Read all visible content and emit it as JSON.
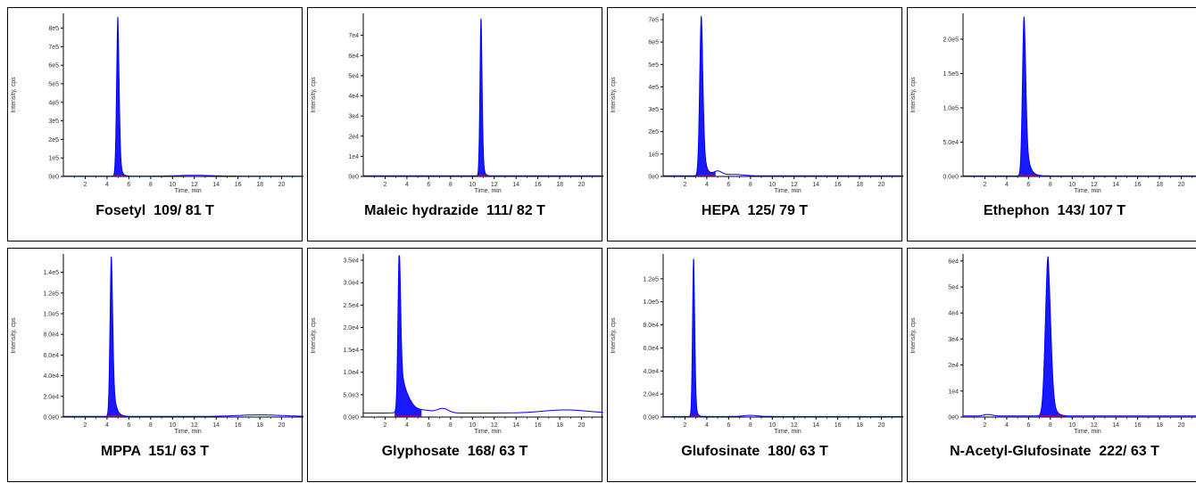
{
  "chart_data": [
    {
      "type": "line",
      "caption": "Fosetyl  109/ 81 T",
      "ylabel": "Intensity, cps",
      "xlabel": "Time, min",
      "xticks": [
        2,
        4,
        6,
        8,
        10,
        12,
        14,
        16,
        18,
        20
      ],
      "xlim": [
        0,
        22
      ],
      "ylim": [
        0,
        870000
      ],
      "yticks": [
        {
          "v": 0,
          "t": "0e0"
        },
        {
          "v": 100000,
          "t": "1e5"
        },
        {
          "v": 200000,
          "t": "2e5"
        },
        {
          "v": 300000,
          "t": "3e5"
        },
        {
          "v": 400000,
          "t": "4e5"
        },
        {
          "v": 500000,
          "t": "5e5"
        },
        {
          "v": 600000,
          "t": "6e5"
        },
        {
          "v": 700000,
          "t": "7e5"
        },
        {
          "v": 800000,
          "t": "8e5"
        }
      ],
      "peak": {
        "rt": 5.0,
        "height": 860000,
        "width": 0.12,
        "tail": 0.15
      },
      "baseline": 2000,
      "bumps": [
        {
          "x": 12,
          "h": 4000,
          "w": 1.5
        }
      ]
    },
    {
      "type": "line",
      "caption": "Maleic hydrazide  111/ 82 T",
      "ylabel": "Intensity, cps",
      "xlabel": "Time, min",
      "xticks": [
        2,
        4,
        6,
        8,
        10,
        12,
        14,
        16,
        18,
        20
      ],
      "xlim": [
        0,
        22
      ],
      "ylim": [
        0,
        80000
      ],
      "yticks": [
        {
          "v": 0,
          "t": "0e0"
        },
        {
          "v": 10000,
          "t": "1e4"
        },
        {
          "v": 20000,
          "t": "2e4"
        },
        {
          "v": 30000,
          "t": "3e4"
        },
        {
          "v": 40000,
          "t": "4e4"
        },
        {
          "v": 50000,
          "t": "5e4"
        },
        {
          "v": 60000,
          "t": "6e4"
        },
        {
          "v": 70000,
          "t": "7e4"
        }
      ],
      "peak": {
        "rt": 10.8,
        "height": 79000,
        "width": 0.1,
        "tail": 0.12
      },
      "baseline": 300,
      "bumps": []
    },
    {
      "type": "line",
      "caption": "HEPA  125/ 79 T",
      "ylabel": "Intensity, cps",
      "xlabel": "Time, min",
      "xticks": [
        2,
        4,
        6,
        8,
        10,
        12,
        14,
        16,
        18,
        20
      ],
      "xlim": [
        0,
        22
      ],
      "ylim": [
        0,
        720000
      ],
      "yticks": [
        {
          "v": 0,
          "t": "0e0"
        },
        {
          "v": 100000,
          "t": "1e5"
        },
        {
          "v": 200000,
          "t": "2e5"
        },
        {
          "v": 300000,
          "t": "3e5"
        },
        {
          "v": 400000,
          "t": "4e5"
        },
        {
          "v": 500000,
          "t": "5e5"
        },
        {
          "v": 600000,
          "t": "6e5"
        },
        {
          "v": 700000,
          "t": "7e5"
        }
      ],
      "peak": {
        "rt": 3.5,
        "height": 715000,
        "width": 0.15,
        "tail": 0.25
      },
      "baseline": 3000,
      "bumps": [
        {
          "x": 5.0,
          "h": 20000,
          "w": 0.4
        },
        {
          "x": 6.5,
          "h": 6000,
          "w": 0.8
        }
      ]
    },
    {
      "type": "line",
      "caption": "Ethephon  143/ 107 T",
      "ylabel": "Intensity, cps",
      "xlabel": "Time, min",
      "xticks": [
        2,
        4,
        6,
        8,
        10,
        12,
        14,
        16,
        18,
        20
      ],
      "xlim": [
        0,
        22
      ],
      "ylim": [
        0,
        235000
      ],
      "yticks": [
        {
          "v": 0,
          "t": "0.0e0"
        },
        {
          "v": 50000,
          "t": "5.0e4"
        },
        {
          "v": 100000,
          "t": "1.0e5"
        },
        {
          "v": 150000,
          "t": "1.5e5"
        },
        {
          "v": 200000,
          "t": "2.0e5"
        }
      ],
      "peak": {
        "rt": 5.6,
        "height": 233000,
        "width": 0.15,
        "tail": 0.3
      },
      "baseline": 800,
      "bumps": []
    },
    {
      "type": "line",
      "caption": "MPPA  151/ 63 T",
      "ylabel": "Intensity, cps",
      "xlabel": "Time, min",
      "xticks": [
        2,
        4,
        6,
        8,
        10,
        12,
        14,
        16,
        18,
        20
      ],
      "xlim": [
        0,
        22
      ],
      "ylim": [
        0,
        156000
      ],
      "yticks": [
        {
          "v": 0,
          "t": "0.0e0"
        },
        {
          "v": 20000,
          "t": "2.0e4"
        },
        {
          "v": 40000,
          "t": "4.0e4"
        },
        {
          "v": 60000,
          "t": "6.0e4"
        },
        {
          "v": 80000,
          "t": "8.0e4"
        },
        {
          "v": 100000,
          "t": "1.0e5"
        },
        {
          "v": 120000,
          "t": "1.2e5"
        },
        {
          "v": 140000,
          "t": "1.4e5"
        }
      ],
      "peak": {
        "rt": 4.4,
        "height": 155000,
        "width": 0.12,
        "tail": 0.25
      },
      "baseline": 600,
      "bumps": [
        {
          "x": 18,
          "h": 1500,
          "w": 2
        }
      ]
    },
    {
      "type": "line",
      "caption": "Glyphosate  168/ 63 T",
      "ylabel": "Intensity, cps",
      "xlabel": "Time, min",
      "xticks": [
        2,
        4,
        6,
        8,
        10,
        12,
        14,
        16,
        18,
        20
      ],
      "xlim": [
        0,
        22
      ],
      "ylim": [
        0,
        36000
      ],
      "yticks": [
        {
          "v": 0,
          "t": "0.0e0"
        },
        {
          "v": 5000,
          "t": "5.0e3"
        },
        {
          "v": 10000,
          "t": "1.0e4"
        },
        {
          "v": 15000,
          "t": "1.5e4"
        },
        {
          "v": 20000,
          "t": "2.0e4"
        },
        {
          "v": 25000,
          "t": "2.5e4"
        },
        {
          "v": 30000,
          "t": "3.0e4"
        },
        {
          "v": 35000,
          "t": "3.5e4"
        }
      ],
      "peak": {
        "rt": 3.3,
        "height": 35800,
        "width": 0.12,
        "tail": 0.45
      },
      "baseline": 900,
      "bumps": [
        {
          "x": 4.0,
          "h": 1500,
          "w": 0.5
        },
        {
          "x": 5.5,
          "h": 600,
          "w": 0.8
        },
        {
          "x": 7.3,
          "h": 1000,
          "w": 0.5
        },
        {
          "x": 18.5,
          "h": 700,
          "w": 2.0
        }
      ]
    },
    {
      "type": "line",
      "caption": "Glufosinate  180/ 63 T",
      "ylabel": "Intensity, cps",
      "xlabel": "Time, min",
      "xticks": [
        2,
        4,
        6,
        8,
        10,
        12,
        14,
        16,
        18,
        20
      ],
      "xlim": [
        0,
        22
      ],
      "ylim": [
        0,
        140000
      ],
      "yticks": [
        {
          "v": 0,
          "t": "0.0e0"
        },
        {
          "v": 20000,
          "t": "2.0e4"
        },
        {
          "v": 40000,
          "t": "4.0e4"
        },
        {
          "v": 60000,
          "t": "6.0e4"
        },
        {
          "v": 80000,
          "t": "8.0e4"
        },
        {
          "v": 100000,
          "t": "1.0e5"
        },
        {
          "v": 120000,
          "t": "1.2e5"
        }
      ],
      "peak": {
        "rt": 2.8,
        "height": 139000,
        "width": 0.1,
        "tail": 0.12
      },
      "baseline": 500,
      "bumps": [
        {
          "x": 8,
          "h": 1000,
          "w": 0.6
        }
      ]
    },
    {
      "type": "line",
      "caption": "N-Acetyl-Glufosinate  222/ 63 T",
      "ylabel": "Intensity, cps",
      "xlabel": "Time, min",
      "xticks": [
        2,
        4,
        6,
        8,
        10,
        12,
        14,
        16,
        18,
        20
      ],
      "xlim": [
        0,
        22
      ],
      "ylim": [
        0,
        62000
      ],
      "yticks": [
        {
          "v": 0,
          "t": "0e0"
        },
        {
          "v": 10000,
          "t": "1e4"
        },
        {
          "v": 20000,
          "t": "2e4"
        },
        {
          "v": 30000,
          "t": "3e4"
        },
        {
          "v": 40000,
          "t": "4e4"
        },
        {
          "v": 50000,
          "t": "5e4"
        },
        {
          "v": 60000,
          "t": "6e4"
        }
      ],
      "peak": {
        "rt": 7.8,
        "height": 61500,
        "width": 0.25,
        "tail": 0.3
      },
      "baseline": 400,
      "bumps": [
        {
          "x": 2.3,
          "h": 600,
          "w": 0.4
        }
      ]
    }
  ],
  "colors": {
    "trace": "#0000ff",
    "fill": "#0000ff",
    "baseline_marker": "#ff0000",
    "axis": "#000000",
    "text": "#555555"
  }
}
